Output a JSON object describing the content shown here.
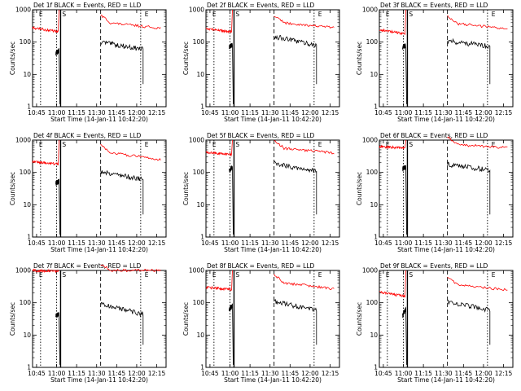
{
  "figure": {
    "xticks": [
      "10:45",
      "11:00",
      "11:15",
      "11:30",
      "11:45",
      "12:00",
      "12:15"
    ],
    "yticks": [
      "1",
      "10",
      "100",
      "1000"
    ],
    "ylabel": "Counts/sec",
    "xlabel": "Start Time (14-Jan-11 10:42:20)",
    "colors": {
      "events": "#000000",
      "lld": "#ff0000"
    }
  },
  "chart_data": [
    {
      "type": "line",
      "title": "Det 1f BLACK = Events, RED = LLD",
      "xlabel": "Start Time (14-Jan-11 10:42:20)",
      "ylabel": "Counts/sec",
      "yscale": "log",
      "ylim": [
        1,
        1000
      ],
      "xlim": [
        "10:42",
        "12:22"
      ],
      "markers": [
        "E",
        "S",
        "E"
      ],
      "series": [
        {
          "name": "Events",
          "values": {
            "seg1": [
              [
                10.99,
                45
              ],
              [
                11.03,
                55
              ]
            ],
            "seg2": [
              [
                11.55,
                100
              ],
              [
                12.08,
                60
              ]
            ]
          }
        },
        {
          "name": "LLD",
          "values": {
            "seg1": [
              [
                10.7,
                280
              ],
              [
                11.02,
                210
              ]
            ],
            "seg2": [
              [
                11.55,
                420
              ],
              [
                12.3,
                270
              ]
            ]
          }
        }
      ]
    },
    {
      "type": "line",
      "title": "Det 2f BLACK = Events, RED = LLD",
      "xlabel": "Start Time (14-Jan-11 10:42:20)",
      "ylabel": "Counts/sec",
      "yscale": "log",
      "ylim": [
        1,
        1000
      ],
      "xlim": [
        "10:42",
        "12:22"
      ],
      "markers": [
        "E",
        "S",
        "E"
      ],
      "series": [
        {
          "name": "Events",
          "values": {
            "seg1": [
              [
                10.99,
                70
              ],
              [
                11.03,
                85
              ]
            ],
            "seg2": [
              [
                11.55,
                150
              ],
              [
                12.08,
                80
              ]
            ]
          }
        },
        {
          "name": "LLD",
          "values": {
            "seg1": [
              [
                10.7,
                260
              ],
              [
                11.02,
                210
              ]
            ],
            "seg2": [
              [
                11.55,
                420
              ],
              [
                12.3,
                280
              ]
            ]
          }
        }
      ]
    },
    {
      "type": "line",
      "title": "Det 3f BLACK = Events, RED = LLD",
      "xlabel": "Start Time (14-Jan-11 10:42:20)",
      "ylabel": "Counts/sec",
      "yscale": "log",
      "ylim": [
        1,
        1000
      ],
      "xlim": [
        "10:42",
        "12:22"
      ],
      "markers": [
        "E",
        "S",
        "E"
      ],
      "series": [
        {
          "name": "Events",
          "values": {
            "seg1": [
              [
                10.99,
                70
              ],
              [
                11.03,
                80
              ]
            ],
            "seg2": [
              [
                11.55,
                110
              ],
              [
                12.08,
                75
              ]
            ]
          }
        },
        {
          "name": "LLD",
          "values": {
            "seg1": [
              [
                10.7,
                240
              ],
              [
                11.02,
                180
              ]
            ],
            "seg2": [
              [
                11.55,
                400
              ],
              [
                12.3,
                260
              ]
            ]
          }
        }
      ]
    },
    {
      "type": "line",
      "title": "Det 4f BLACK = Events, RED = LLD",
      "xlabel": "Start Time (14-Jan-11 10:42:20)",
      "ylabel": "Counts/sec",
      "yscale": "log",
      "ylim": [
        1,
        1000
      ],
      "xlim": [
        "10:42",
        "12:22"
      ],
      "markers": [
        "E",
        "S",
        "E"
      ],
      "series": [
        {
          "name": "Events",
          "values": {
            "seg1": [
              [
                10.99,
                45
              ],
              [
                11.03,
                55
              ]
            ],
            "seg2": [
              [
                11.55,
                110
              ],
              [
                12.08,
                60
              ]
            ]
          }
        },
        {
          "name": "LLD",
          "values": {
            "seg1": [
              [
                10.7,
                220
              ],
              [
                11.02,
                180
              ]
            ],
            "seg2": [
              [
                11.55,
                450
              ],
              [
                12.3,
                250
              ]
            ]
          }
        }
      ]
    },
    {
      "type": "line",
      "title": "Det 5f BLACK = Events, RED = LLD",
      "xlabel": "Start Time (14-Jan-11 10:42:20)",
      "ylabel": "Counts/sec",
      "yscale": "log",
      "ylim": [
        1,
        1000
      ],
      "xlim": [
        "10:42",
        "12:22"
      ],
      "markers": [
        "E",
        "S",
        "E"
      ],
      "series": [
        {
          "name": "Events",
          "values": {
            "seg1": [
              [
                10.99,
                120
              ],
              [
                11.03,
                140
              ]
            ],
            "seg2": [
              [
                11.55,
                190
              ],
              [
                12.08,
                110
              ]
            ]
          }
        },
        {
          "name": "LLD",
          "values": {
            "seg1": [
              [
                10.7,
                420
              ],
              [
                11.02,
                350
              ]
            ],
            "seg2": [
              [
                11.55,
                600
              ],
              [
                12.3,
                400
              ]
            ]
          }
        }
      ]
    },
    {
      "type": "line",
      "title": "Det 6f BLACK = Events, RED = LLD",
      "xlabel": "Start Time (14-Jan-11 10:42:20)",
      "ylabel": "Counts/sec",
      "yscale": "log",
      "ylim": [
        1,
        1000
      ],
      "xlim": [
        "10:42",
        "12:22"
      ],
      "markers": [
        "E",
        "S",
        "E"
      ],
      "series": [
        {
          "name": "Events",
          "values": {
            "seg1": [
              [
                10.99,
                130
              ],
              [
                11.03,
                150
              ]
            ],
            "seg2": [
              [
                11.55,
                180
              ],
              [
                12.08,
                120
              ]
            ]
          }
        },
        {
          "name": "LLD",
          "values": {
            "seg1": [
              [
                10.7,
                640
              ],
              [
                11.02,
                560
              ]
            ],
            "seg2": [
              [
                11.55,
                760
              ],
              [
                12.3,
                580
              ]
            ]
          }
        }
      ]
    },
    {
      "type": "line",
      "title": "Det 7f BLACK = Events, RED = LLD",
      "xlabel": "Start Time (14-Jan-11 10:42:20)",
      "ylabel": "Counts/sec",
      "yscale": "log",
      "ylim": [
        1,
        1000
      ],
      "xlim": [
        "10:42",
        "12:22"
      ],
      "markers": [
        "E",
        "S",
        "E"
      ],
      "series": [
        {
          "name": "Events",
          "values": {
            "seg1": [
              [
                10.99,
                40
              ],
              [
                11.03,
                45
              ]
            ],
            "seg2": [
              [
                11.55,
                90
              ],
              [
                12.08,
                45
              ]
            ]
          }
        },
        {
          "name": "LLD",
          "values": {
            "seg1": [
              [
                10.7,
                1000
              ],
              [
                11.02,
                950
              ]
            ],
            "seg2": [
              [
                11.55,
                1000
              ],
              [
                12.3,
                1000
              ]
            ]
          }
        }
      ]
    },
    {
      "type": "line",
      "title": "Det 8f BLACK = Events, RED = LLD",
      "xlabel": "Start Time (14-Jan-11 10:42:20)",
      "ylabel": "Counts/sec",
      "yscale": "log",
      "ylim": [
        1,
        1000
      ],
      "xlim": [
        "10:42",
        "12:22"
      ],
      "markers": [
        "E",
        "S",
        "E"
      ],
      "series": [
        {
          "name": "Events",
          "values": {
            "seg1": [
              [
                10.99,
                65
              ],
              [
                11.03,
                80
              ]
            ],
            "seg2": [
              [
                11.55,
                110
              ],
              [
                12.08,
                60
              ]
            ]
          }
        },
        {
          "name": "LLD",
          "values": {
            "seg1": [
              [
                10.7,
                300
              ],
              [
                11.02,
                260
              ]
            ],
            "seg2": [
              [
                11.55,
                450
              ],
              [
                12.3,
                270
              ]
            ]
          }
        }
      ]
    },
    {
      "type": "line",
      "title": "Det 9f BLACK = Events, RED = LLD",
      "xlabel": "Start Time (14-Jan-11 10:42:20)",
      "ylabel": "Counts/sec",
      "yscale": "log",
      "ylim": [
        1,
        1000
      ],
      "xlim": [
        "10:42",
        "12:22"
      ],
      "markers": [
        "E",
        "S",
        "E"
      ],
      "series": [
        {
          "name": "Events",
          "values": {
            "seg1": [
              [
                10.99,
                40
              ],
              [
                11.03,
                65
              ]
            ],
            "seg2": [
              [
                11.55,
                110
              ],
              [
                12.08,
                60
              ]
            ]
          }
        },
        {
          "name": "LLD",
          "values": {
            "seg1": [
              [
                10.7,
                210
              ],
              [
                11.02,
                160
              ]
            ],
            "seg2": [
              [
                11.55,
                380
              ],
              [
                12.3,
                250
              ]
            ]
          }
        }
      ]
    }
  ]
}
